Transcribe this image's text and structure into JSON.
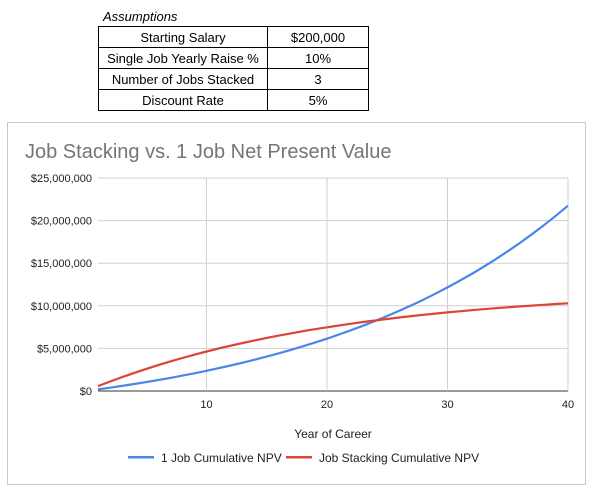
{
  "assumptions": {
    "heading": "Assumptions",
    "rows": [
      {
        "label": "Starting Salary",
        "value": "$200,000"
      },
      {
        "label": "Single Job Yearly Raise %",
        "value": "10%"
      },
      {
        "label": "Number of Jobs Stacked",
        "value": "3"
      },
      {
        "label": "Discount Rate",
        "value": "5%"
      }
    ]
  },
  "colors": {
    "series_1": "#4a86e8",
    "series_2": "#db4437",
    "grid": "#d0d0d0",
    "title": "#757575"
  },
  "chart_data": {
    "type": "line",
    "title": "Job Stacking vs. 1 Job Net Present Value",
    "xlabel": "Year of Career",
    "ylabel": "",
    "xlim": [
      1,
      40
    ],
    "ylim": [
      0,
      25000000
    ],
    "x_ticks": [
      10,
      20,
      30,
      40
    ],
    "y_ticks": [
      {
        "value": 0,
        "label": "$0"
      },
      {
        "value": 5000000,
        "label": "$5,000,000"
      },
      {
        "value": 10000000,
        "label": "$10,000,000"
      },
      {
        "value": 15000000,
        "label": "$15,000,000"
      },
      {
        "value": 20000000,
        "label": "$20,000,000"
      },
      {
        "value": 25000000,
        "label": "$25,000,000"
      }
    ],
    "grid": true,
    "legend_position": "bottom",
    "x": [
      1,
      2,
      3,
      4,
      5,
      6,
      7,
      8,
      9,
      10,
      11,
      12,
      13,
      14,
      15,
      16,
      17,
      18,
      19,
      20,
      21,
      22,
      23,
      24,
      25,
      26,
      27,
      28,
      29,
      30,
      31,
      32,
      33,
      34,
      35,
      36,
      37,
      38,
      39,
      40
    ],
    "series": [
      {
        "name": "1 Job Cumulative NPV",
        "values": [
          190476,
          390023,
          599081,
          818103,
          1047565,
          1287959,
          1539800,
          1803638,
          2080048,
          2369621,
          2672967,
          2990757,
          3323650,
          3672393,
          4037744,
          4420498,
          4821489,
          5241590,
          5681716,
          6142826,
          6625924,
          7132062,
          7662346,
          8217934,
          8800040,
          9409934,
          10048951,
          10718490,
          11420019,
          12155078,
          12925289,
          13732354,
          14578070,
          15464317,
          16393078,
          17366446,
          18386620,
          19455909,
          20576761,
          21751758
        ]
      },
      {
        "name": "Job Stacking Cumulative NPV",
        "values": [
          571429,
          1115646,
          1633949,
          2127571,
          2597687,
          3045416,
          3471825,
          3877929,
          4264694,
          4633042,
          4983850,
          5317952,
          5636145,
          5939186,
          6227796,
          6502663,
          6764441,
          7013754,
          7251194,
          7477327,
          7692692,
          7897802,
          8093145,
          8279186,
          8456367,
          8625112,
          8785821,
          8938877,
          9084645,
          9223471,
          9355687,
          9481607,
          9601531,
          9715744,
          9824518,
          9928113,
          10026775,
          10120738,
          10210227,
          10295454
        ]
      }
    ]
  }
}
